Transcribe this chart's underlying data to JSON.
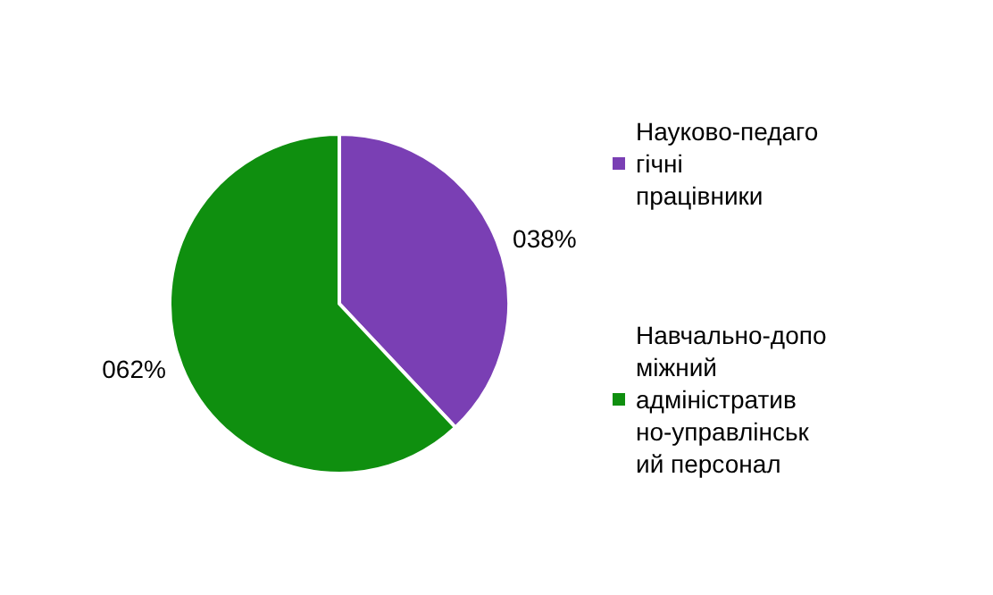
{
  "chart_data": {
    "type": "pie",
    "categories": [
      "Науково-педагогічні працівники",
      "Навчально-допоміжний адміністративно-управлінський персонал"
    ],
    "values": [
      38,
      62
    ],
    "value_labels": [
      "038%",
      "062%"
    ],
    "colors": [
      "#7a3fb4",
      "#0f8f0f"
    ],
    "legend": "right"
  }
}
